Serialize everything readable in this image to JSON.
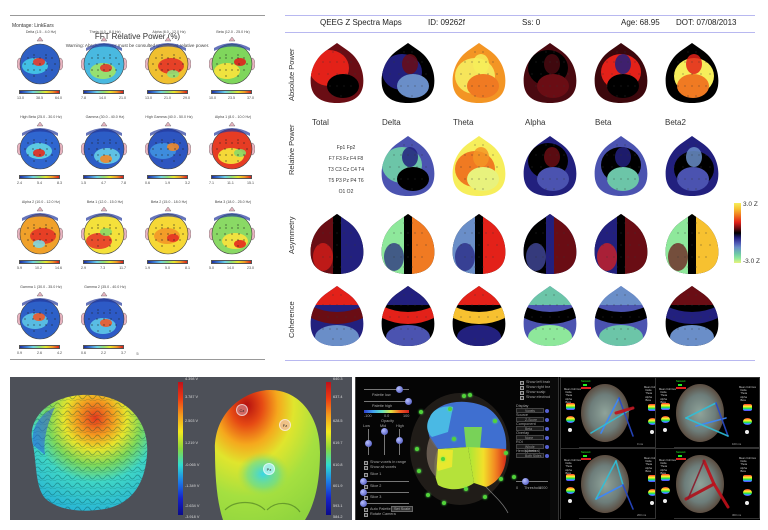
{
  "fft_report": {
    "montage_label": "Montage:",
    "montage_value": "LinkEars",
    "title": "FFT Relative Power  (%)",
    "warning": "Warning:  Absolute power must be consulted to interpret relative power.",
    "page_number": "5",
    "maps": [
      {
        "label": "Delta (1.5 - 4.0 Hz)",
        "ticks": [
          "13.0",
          "38.5",
          "64.0"
        ]
      },
      {
        "label": "Theta (4.0 - 8.0 Hz)",
        "ticks": [
          "7.8",
          "14.0",
          "21.0"
        ]
      },
      {
        "label": "Alpha (8.0 - 12.0 Hz)",
        "ticks": [
          "13.0",
          "21.0",
          "29.0"
        ]
      },
      {
        "label": "Beta (12.0 - 25.0 Hz)",
        "ticks": [
          "10.0",
          "23.5",
          "37.0"
        ]
      },
      {
        "label": "High Beta (25.0 - 30.0 Hz)",
        "ticks": [
          "2.4",
          "5.4",
          "8.3"
        ]
      },
      {
        "label": "Gamma (30.0 - 40.0 Hz)",
        "ticks": [
          "1.5",
          "4.7",
          "7.8"
        ]
      },
      {
        "label": "High Gamma (40.0 - 50.0 Hz)",
        "ticks": [
          "0.6",
          "1.9",
          "3.2"
        ]
      },
      {
        "label": "Alpha 1 (8.0 - 10.0 Hz)",
        "ticks": [
          "7.1",
          "11.1",
          "15.1"
        ]
      },
      {
        "label": "Alpha 2 (10.0 - 12.0 Hz)",
        "ticks": [
          "5.9",
          "10.2",
          "14.6"
        ]
      },
      {
        "label": "Beta 1 (12.0 - 15.0 Hz)",
        "ticks": [
          "2.9",
          "7.3",
          "11.7"
        ]
      },
      {
        "label": "Beta 2 (15.0 - 18.0 Hz)",
        "ticks": [
          "1.9",
          "5.0",
          "8.1"
        ]
      },
      {
        "label": "Beta 3 (18.0 - 25.0 Hz)",
        "ticks": [
          "5.0",
          "14.0",
          "23.0"
        ]
      },
      {
        "label": "Gamma 1 (30.0 - 35.0 Hz)",
        "ticks": [
          "0.9",
          "2.6",
          "4.2"
        ]
      },
      {
        "label": "Gamma 2 (35.0 - 40.0 Hz)",
        "ticks": [
          "0.6",
          "2.2",
          "3.7"
        ]
      }
    ]
  },
  "qeeg_report": {
    "title": "QEEG Z Spectra Maps",
    "id": "ID: 09262f",
    "ss": "Ss: 0",
    "age": "Age: 68.95",
    "dot": "DOT: 07/08/2013",
    "row_labels": [
      "Absolute Power",
      "Relative Power",
      "Asymmetry",
      "Coherence"
    ],
    "column_labels": [
      "Total",
      "Delta",
      "Theta",
      "Alpha",
      "Beta",
      "Beta2"
    ],
    "electrode_legend": [
      "Fp1  Fp2",
      "F7 F3 Fz F4 F8",
      "T3 C3 Cz C4 T4",
      "T5 P3 Pz P4 T6",
      "O1  O2"
    ],
    "scale_max": "3.0 Z",
    "scale_min": "-3.0 Z"
  },
  "source_3d": {
    "left_scale_ticks": [
      "4.398 V",
      "3.787 V",
      "2.503 V",
      "1.219 V",
      "-0.065 V",
      "-1.349 V",
      "-2.634 V",
      "-3.918 V"
    ],
    "right_scale_ticks": [
      "640.3",
      "637.4",
      "628.5",
      "619.7",
      "610.8",
      "601.9",
      "593.1",
      "584.2"
    ],
    "markers": [
      "Cz",
      "Fz",
      "Pz"
    ]
  },
  "loreta_viewer": {
    "palette_low_label": "Palette low",
    "palette_high_label": "Palette high",
    "colorbar_ticks": [
      "-100",
      "0.0",
      "100"
    ],
    "opacity_label": "Opacity",
    "slider_labels": [
      "Low",
      "Mid",
      "High"
    ],
    "checkboxes_left": [
      "Show voxels in range",
      "Show all voxels",
      "Slice 1",
      "Slice 2",
      "Slice 3",
      "Auto Palette",
      "Rotate Camera"
    ],
    "set_scale_button": "Set Scale",
    "checkboxes_right": [
      "Show left brain",
      "Show right brain",
      "Show scalp",
      "Show electrodes"
    ],
    "dropdowns": [
      {
        "label": "Display",
        "value": "Voxels"
      },
      {
        "label": "Source",
        "value": "Z-Score"
      },
      {
        "label": "Component",
        "value": "Beta"
      },
      {
        "label": "Overlay",
        "value": "None"
      },
      {
        "label": "ROI",
        "value": "Whole (Cerebral)"
      },
      {
        "label": "Hemisphere",
        "value": "Both Sides"
      }
    ],
    "threshold_label": "Threshold",
    "threshold_min": "0",
    "threshold_max": "1000"
  },
  "connectivity_viewer": {
    "quadrant_footers": [
      "0 ms",
      "100 ms",
      "200 ms",
      "300 ms"
    ],
    "legend_title": "Network",
    "side_info": "Mean Cohrnce\n  Delta\n  Theta\n  Alpha\n  Beta"
  }
}
